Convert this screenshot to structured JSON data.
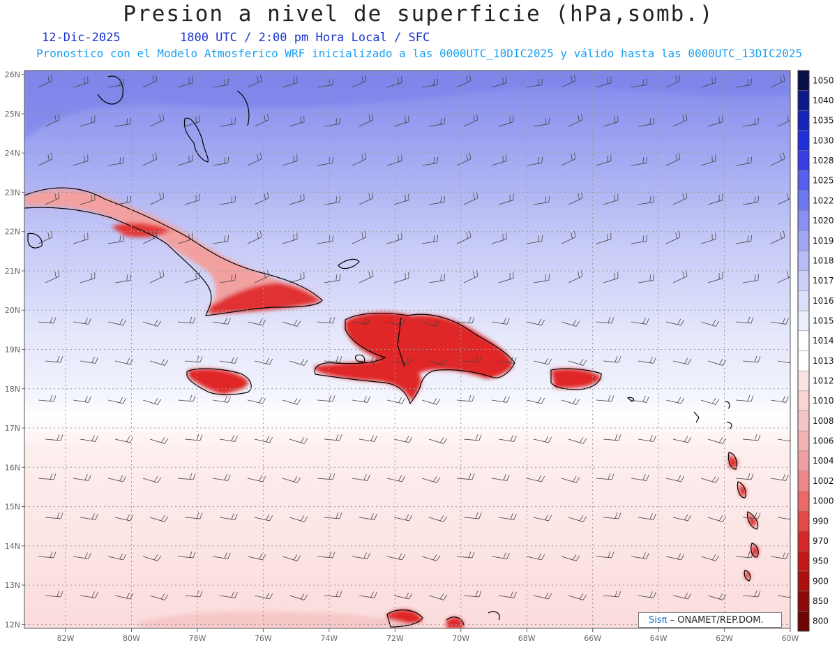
{
  "header": {
    "title": "Presion a nivel de superficie (hPa,somb.)",
    "date": "12-Dic-2025",
    "time": "1800 UTC / 2:00 pm Hora Local / SFC",
    "info": "Pronostico con el Modelo Atmosferico WRF inicializado a las 0000UTC_10DIC2025 y válido hasta las  0000UTC_13DIC2025"
  },
  "map": {
    "lon_labels": [
      "82W",
      "80W",
      "78W",
      "76W",
      "74W",
      "72W",
      "70W",
      "68W",
      "66W",
      "64W",
      "62W",
      "60W"
    ],
    "lat_labels": [
      "12N",
      "13N",
      "14N",
      "15N",
      "16N",
      "17N",
      "18N",
      "19N",
      "20N",
      "21N",
      "22N",
      "23N",
      "24N",
      "25N",
      "26N"
    ],
    "grid": true,
    "wind_barbs": true
  },
  "colorbar": {
    "levels": [
      "1050",
      "1040",
      "1035",
      "1030",
      "1028",
      "1025",
      "1022",
      "1020",
      "1019",
      "1018",
      "1017",
      "1016",
      "1015",
      "1014",
      "1013",
      "1012",
      "1010",
      "1008",
      "1006",
      "1004",
      "1002",
      "1000",
      "990",
      "970",
      "950",
      "900",
      "850",
      "800"
    ],
    "colors": [
      "#081048",
      "#0d1b8a",
      "#1527b8",
      "#2030d8",
      "#3a3ee6",
      "#5560ee",
      "#7078f0",
      "#8a90f2",
      "#a0a6f4",
      "#b8bcf6",
      "#ccd0f8",
      "#dcdffa",
      "#eceefc",
      "#ffffff",
      "#ffffff",
      "#fbe3e3",
      "#f8d4d4",
      "#f5c4c4",
      "#f3b4b4",
      "#f0a0a0",
      "#ee8888",
      "#ea6a6a",
      "#e44848",
      "#d62828",
      "#c41818",
      "#ae1010",
      "#8e0a0a",
      "#6e0606"
    ]
  },
  "credit": {
    "sis": "Sisπ",
    "text": "– ONAMET/REP.DOM."
  }
}
